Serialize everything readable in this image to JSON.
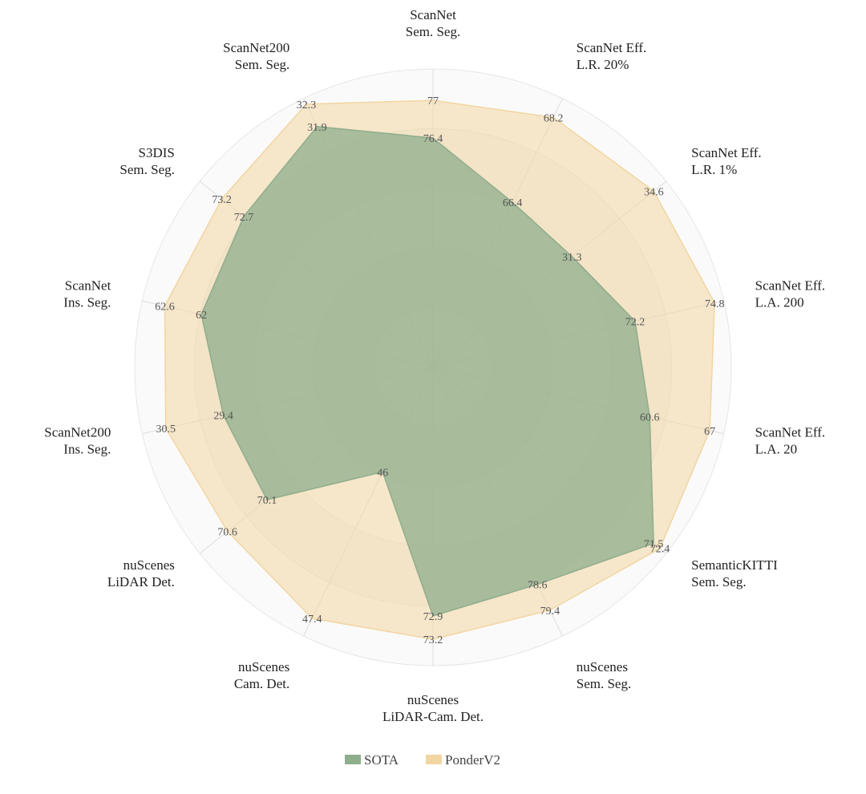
{
  "chart_data": {
    "type": "radar",
    "categories": [
      [
        "ScanNet",
        "Sem. Seg."
      ],
      [
        "ScanNet Eff.",
        "L.R. 20%"
      ],
      [
        "ScanNet Eff.",
        "L.R. 1%"
      ],
      [
        "ScanNet Eff.",
        "L.A. 200"
      ],
      [
        "ScanNet Eff.",
        "L.A. 20"
      ],
      [
        "SemanticKITTI",
        "Sem. Seg."
      ],
      [
        "nuScenes",
        "Sem. Seg."
      ],
      [
        "nuScenes",
        "LiDAR-Cam. Det."
      ],
      [
        "nuScenes",
        "Cam. Det."
      ],
      [
        "nuScenes",
        "LiDAR Det."
      ],
      [
        "ScanNet200",
        "Ins. Seg."
      ],
      [
        "ScanNet",
        "Ins. Seg."
      ],
      [
        "S3DIS",
        "Sem. Seg."
      ],
      [
        "ScanNet200",
        "Sem. Seg."
      ]
    ],
    "axis_ranges": [
      [
        72.75,
        77.5
      ],
      [
        62.9,
        68.6
      ],
      [
        25.7,
        35.1
      ],
      [
        65.6,
        75.1
      ],
      [
        37.5,
        68.5
      ],
      [
        40,
        73.3
      ],
      [
        71.9,
        80.2
      ],
      [
        69.7,
        73.54
      ],
      [
        45.0,
        47.57
      ],
      [
        68.0,
        70.95
      ],
      [
        25.4,
        30.95
      ],
      [
        58.2,
        62.97
      ],
      [
        68.4,
        73.7
      ],
      [
        27.6,
        32.4
      ]
    ],
    "series": [
      {
        "name": "SOTA",
        "color": "#8fae8c",
        "values": [
          76.4,
          66.4,
          31.3,
          72.2,
          60.6,
          71.5,
          78.6,
          72.9,
          46.0,
          70.1,
          29.4,
          62.0,
          72.7,
          31.9
        ]
      },
      {
        "name": "PonderV2",
        "color": "#f2d6a2",
        "values": [
          77.0,
          68.2,
          34.6,
          74.8,
          67.0,
          72.4,
          79.4,
          73.2,
          47.4,
          70.6,
          30.5,
          62.6,
          73.2,
          32.3
        ]
      }
    ],
    "grid": true,
    "legend": "bottom"
  }
}
